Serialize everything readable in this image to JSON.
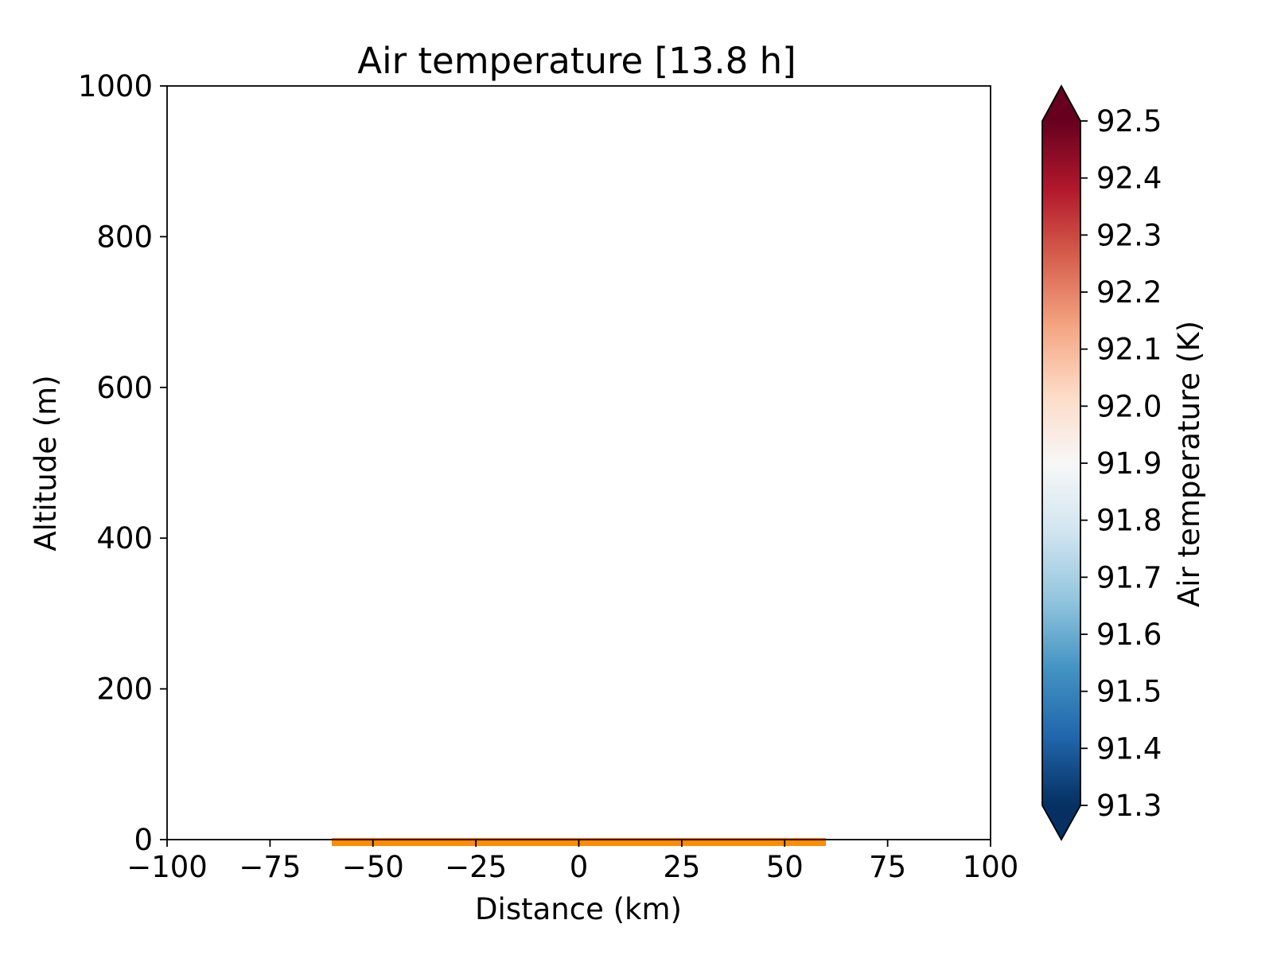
{
  "chart_data": {
    "type": "heatmap",
    "title": "Air temperature [13.8 h]",
    "xlabel": "Distance (km)",
    "ylabel": "Altitude (m)",
    "xlim": [
      -100,
      100
    ],
    "ylim": [
      0,
      1000
    ],
    "xticks": [
      -100,
      -75,
      -50,
      -25,
      0,
      25,
      50,
      75,
      100
    ],
    "xtick_labels": [
      "−100",
      "−75",
      "−50",
      "−25",
      "0",
      "25",
      "50",
      "75",
      "100"
    ],
    "yticks": [
      0,
      200,
      400,
      600,
      800,
      1000
    ],
    "ytick_labels": [
      "0",
      "200",
      "400",
      "600",
      "800",
      "1000"
    ],
    "grid": false,
    "field": "empty",
    "surface_strip": {
      "x_range": [
        -60,
        60
      ],
      "color": "#ff8c00"
    },
    "colorbar": {
      "label": "Air temperature (K)",
      "min": 91.3,
      "max": 92.5,
      "extend": "both",
      "colormap": "RdBu_r",
      "ticks": [
        91.3,
        91.4,
        91.5,
        91.6,
        91.7,
        91.8,
        91.9,
        92.0,
        92.1,
        92.2,
        92.3,
        92.4,
        92.5
      ],
      "tick_labels": [
        "91.3",
        "91.4",
        "91.5",
        "91.6",
        "91.7",
        "91.8",
        "91.9",
        "92.0",
        "92.1",
        "92.2",
        "92.3",
        "92.4",
        "92.5"
      ],
      "low_color": "#053061",
      "high_color": "#67001f"
    }
  }
}
